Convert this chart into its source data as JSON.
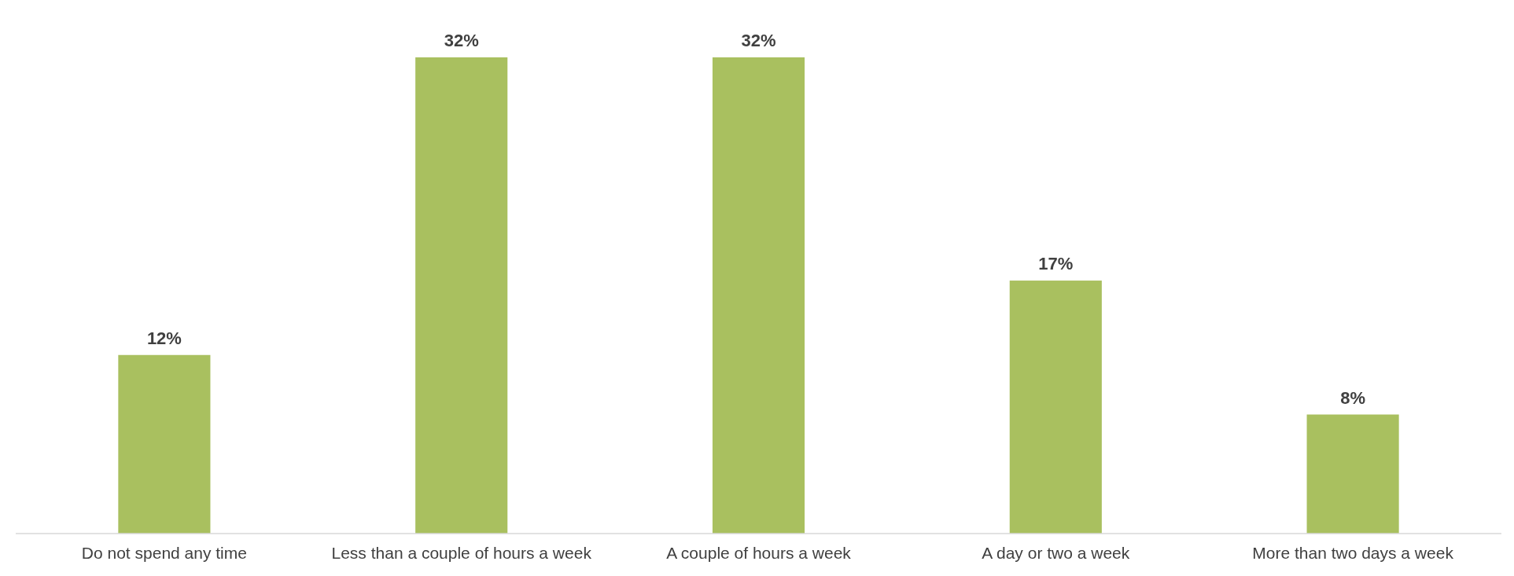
{
  "chart_data": {
    "type": "bar",
    "categories": [
      "Do not spend any time",
      "Less than a couple of hours a week",
      "A couple of hours a week",
      "A day or two a week",
      "More than two days a week"
    ],
    "values": [
      12,
      32,
      32,
      17,
      8
    ],
    "value_labels": [
      "12%",
      "32%",
      "32%",
      "17%",
      "8%"
    ],
    "color": "#a9c05f",
    "tick_labels": "x"
  }
}
